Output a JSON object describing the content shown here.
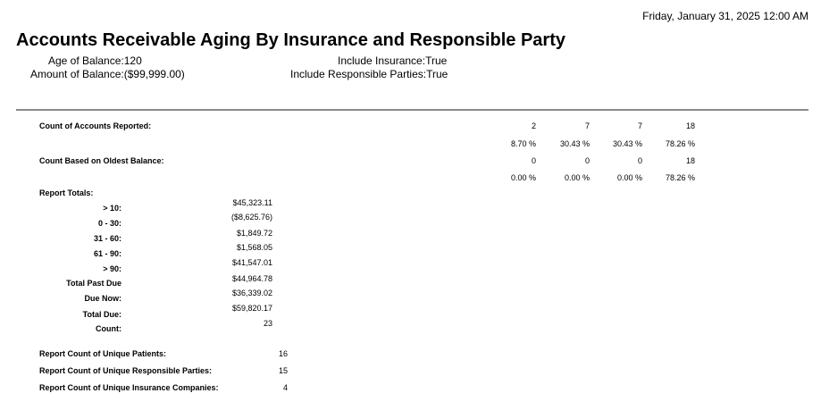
{
  "header": {
    "date": "Friday, January 31, 2025 12:00 AM",
    "title": "Accounts Receivable Aging By Insurance and Responsible Party"
  },
  "params": {
    "age_label": "Age of Balance:",
    "age_value": "120",
    "amount_label": "Amount of Balance:",
    "amount_value": "($99,999.00)",
    "insurance_label": "Include Insurance:",
    "insurance_value": "True",
    "resp_label": "Include Responsible Parties:",
    "resp_value": "True"
  },
  "counts": {
    "reported_label": "Count of Accounts Reported:",
    "reported": [
      "2",
      "7",
      "7",
      "18"
    ],
    "reported_pct": [
      "8.70 %",
      "30.43 %",
      "30.43 %",
      "78.26 %"
    ],
    "oldest_label": "Count Based on Oldest Balance:",
    "oldest": [
      "0",
      "0",
      "0",
      "18"
    ],
    "oldest_pct": [
      "0.00 %",
      "0.00 %",
      "0.00 %",
      "78.26 %"
    ]
  },
  "totals": {
    "label": "Report Totals:",
    "rows": [
      {
        "label": "> 10:",
        "value": "$45,323.11"
      },
      {
        "label": "0 - 30:",
        "value": "($8,625.76)"
      },
      {
        "label": "31 - 60:",
        "value": "$1,849.72"
      },
      {
        "label": "61 - 90:",
        "value": "$1,568.05"
      },
      {
        "label": "> 90:",
        "value": "$41,547.01"
      },
      {
        "label": "Total Past Due",
        "value": "$44,964.78"
      },
      {
        "label": "Due Now:",
        "value": "$36,339.02"
      },
      {
        "label": "Total Due:",
        "value": "$59,820.17"
      },
      {
        "label": "Count:",
        "value": "23"
      }
    ]
  },
  "unique": {
    "patients_label": "Report Count of Unique Patients:",
    "patients": "16",
    "parties_label": "Report Count of Unique Responsible Parties:",
    "parties": "15",
    "insurance_label": "Report Count of Unique Insurance Companies:",
    "insurance": "4"
  }
}
